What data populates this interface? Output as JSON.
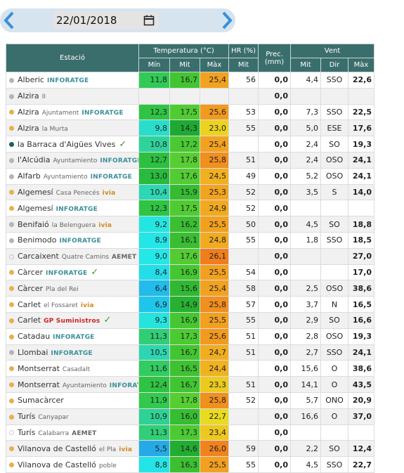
{
  "date": "22/01/2018",
  "table": {
    "headers": [
      "Estació",
      "Temperatura (°C)",
      "HR (%)",
      "Prec. (mm)",
      "Vent"
    ],
    "subheaders": [
      "Mín",
      "Mit",
      "Màx",
      "Mit",
      "Mit",
      "Dir",
      "Màx"
    ],
    "rows": [
      {
        "name": "Alberic",
        "brand": "INFORATGE",
        "brand_color": "#3a8f9a",
        "dot": "gray",
        "cells": [
          "11,8",
          "16,7",
          "25,4",
          "56",
          "0,0",
          "4,4",
          "SSO",
          "22,6"
        ]
      },
      {
        "name": "Alzira",
        "sub": "II",
        "dot": "gray",
        "cells": [
          null,
          null,
          null,
          null,
          "0,0",
          null,
          null,
          null
        ]
      },
      {
        "name": "Alzira",
        "sub": "Ajuntament",
        "brand": "INFORATGE",
        "brand_color": "#3a8f9a",
        "dot": "orange",
        "cells": [
          "12,3",
          "17,5",
          "25,6",
          "53",
          "0,0",
          "7,3",
          "SSO",
          "22,5"
        ]
      },
      {
        "name": "Alzira",
        "sub": "la Murta",
        "dot": "orange",
        "cells": [
          "9,8",
          "14,3",
          "23,0",
          "55",
          "0,0",
          "5,0",
          "ESE",
          "17,6"
        ]
      },
      {
        "name": "la Barraca d'Aigües Vives",
        "verified": true,
        "dot": "teal",
        "cells": [
          "10,8",
          "17,2",
          "25,4",
          null,
          "0,0",
          "2,4",
          "SO",
          "19,3"
        ]
      },
      {
        "name": "l'Alcúdia",
        "sub": "Ayuntamiento",
        "brand": "INFORATGE",
        "brand_color": "#3a8f9a",
        "dot": "gray",
        "cells": [
          "12,7",
          "17,8",
          "25,8",
          "51",
          "0,0",
          "2,4",
          "OSO",
          "24,1"
        ]
      },
      {
        "name": "Alfarb",
        "sub": "Ayuntamiento",
        "brand": "INFORATGE",
        "brand_color": "#3a8f9a",
        "dot": "gray",
        "cells": [
          "13,0",
          "17,6",
          "24,5",
          "49",
          "0,0",
          "5,2",
          "OSO",
          "24,1"
        ]
      },
      {
        "name": "Algemesí",
        "sub": "Casa Penecés",
        "brand": "ivia",
        "brand_color": "#d08a20",
        "dot": "orange",
        "cells": [
          "10,4",
          "15,9",
          "25,3",
          "52",
          "0,0",
          "3,5",
          "S",
          "14,0"
        ]
      },
      {
        "name": "Algemesí",
        "brand": "INFORATGE",
        "brand_color": "#3a8f9a",
        "dot": "orange",
        "cells": [
          "12,3",
          "17,5",
          "24,9",
          "52",
          "0,0",
          null,
          null,
          null
        ]
      },
      {
        "name": "Benifaió",
        "sub": "la Belenguera",
        "brand": "ivia",
        "brand_color": "#d08a20",
        "dot": "gray",
        "cells": [
          "9,2",
          "16,2",
          "25,5",
          "50",
          "0,0",
          "4,5",
          "SO",
          "18,8"
        ]
      },
      {
        "name": "Benimodo",
        "brand": "INFORATGE",
        "brand_color": "#3a8f9a",
        "dot": "gray",
        "cells": [
          "8,9",
          "16,1",
          "24,8",
          "55",
          "0,0",
          "1,8",
          "SSO",
          "18,5"
        ]
      },
      {
        "name": "Carcaixent",
        "sub": "Quatre Camins",
        "brand": "AEMET",
        "brand_color": "#666666",
        "dot": "dotted",
        "cells": [
          "9,0",
          "17,6",
          "26,1",
          null,
          "0,0",
          null,
          null,
          "27,0"
        ]
      },
      {
        "name": "Càrcer",
        "brand": "INFORATGE",
        "brand_color": "#3a8f9a",
        "verified": true,
        "dot": "orange",
        "cells": [
          "8,4",
          "16,9",
          "25,5",
          "54",
          "0,0",
          null,
          null,
          "17,0"
        ]
      },
      {
        "name": "Càrcer",
        "sub": "Pla del Rei",
        "dot": "orange",
        "cells": [
          "6,4",
          "15,6",
          "25,4",
          "58",
          "0,0",
          "2,5",
          "OSO",
          "38,6"
        ]
      },
      {
        "name": "Carlet",
        "sub": "el Fossaret",
        "brand": "ivia",
        "brand_color": "#d08a20",
        "dot": "orange",
        "cells": [
          "6,9",
          "14,9",
          "25,8",
          "57",
          "0,0",
          "3,7",
          "N",
          "16,5"
        ]
      },
      {
        "name": "Carlet",
        "brand": "GP Suministros",
        "brand_color": "#cc2222",
        "verified": true,
        "dot": "orange",
        "cells": [
          "9,3",
          "16,9",
          "25,5",
          "55",
          "0,0",
          "2,9",
          "SO",
          "16,6"
        ]
      },
      {
        "name": "Catadau",
        "brand": "INFORATGE",
        "brand_color": "#3a8f9a",
        "dot": "orange",
        "cells": [
          "11,3",
          "17,3",
          "25,6",
          "51",
          "0,0",
          "2,8",
          "OSO",
          "19,3"
        ]
      },
      {
        "name": "Llombai",
        "brand": "INFORATGE",
        "brand_color": "#3a8f9a",
        "dot": "gray",
        "cells": [
          "10,5",
          "16,7",
          "24,7",
          "51",
          "0,0",
          "2,7",
          "SSO",
          "24,1"
        ]
      },
      {
        "name": "Montserrat",
        "sub": "Casadalt",
        "dot": "orange",
        "cells": [
          "11,6",
          "16,5",
          "24,4",
          null,
          "0,0",
          "15,6",
          "O",
          "38,6"
        ]
      },
      {
        "name": "Montserrat",
        "sub": "Ayuntamiento",
        "brand": "INFORATGE",
        "brand_color": "#3a8f9a",
        "dot": "orange",
        "cells": [
          "12,4",
          "16,7",
          "23,3",
          "51",
          "0,0",
          "14,1",
          "O",
          "43,5"
        ]
      },
      {
        "name": "Sumacàrcer",
        "dot": "orange",
        "cells": [
          "11,9",
          "17,8",
          "25,8",
          "52",
          "0,0",
          "5,7",
          "ONO",
          "20,9"
        ]
      },
      {
        "name": "Turís",
        "sub": "Canyapar",
        "dot": "orange",
        "cells": [
          "10,9",
          "16,0",
          "22,7",
          null,
          "0,0",
          "16,6",
          "O",
          "37,0"
        ]
      },
      {
        "name": "Turís",
        "sub": "Calabarra",
        "brand": "AEMET",
        "brand_color": "#666666",
        "dot": "dotted",
        "cells": [
          "11,3",
          "17,3",
          "23,4",
          null,
          "0,0",
          null,
          null,
          null
        ]
      },
      {
        "name": "Vilanova de Castelló",
        "sub": "el Pla",
        "brand": "ivia",
        "brand_color": "#d08a20",
        "dot": "orange",
        "cells": [
          "5,5",
          "14,6",
          "26,0",
          "59",
          "0,0",
          "2,2",
          "SO",
          "12,4"
        ]
      },
      {
        "name": "Vilanova de Castelló",
        "sub": "poble",
        "dot": "orange",
        "cells": [
          "8,8",
          "16,3",
          "25,5",
          "55",
          "0,0",
          "4,5",
          "SSO",
          "22,7"
        ]
      }
    ]
  }
}
